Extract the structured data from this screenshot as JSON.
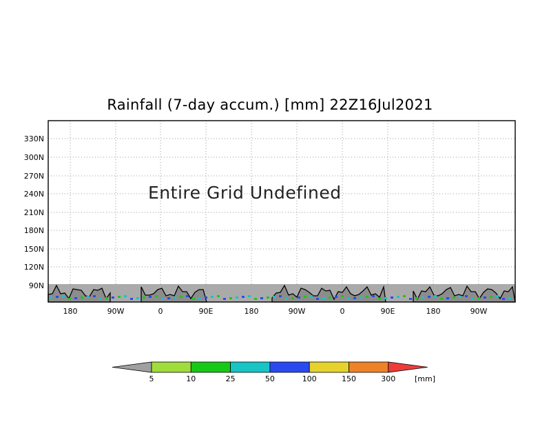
{
  "title": "Rainfall (7-day accum.) [mm] 22Z16Jul2021",
  "message": "Entire Grid Undefined",
  "y_axis_labels": [
    "330N",
    "300N",
    "270N",
    "240N",
    "210N",
    "180N",
    "150N",
    "120N",
    "90N"
  ],
  "x_axis_labels": [
    "180",
    "90W",
    "0",
    "90E",
    "180",
    "90W",
    "0",
    "90E",
    "180",
    "90W"
  ],
  "colorbar": {
    "unit": "[mm]",
    "tick_labels": [
      "5",
      "10",
      "25",
      "50",
      "100",
      "150",
      "300"
    ],
    "colors": [
      "#a0a0a0",
      "#9fdc3c",
      "#18c818",
      "#18c4c4",
      "#2a4af0",
      "#e6d22c",
      "#ee8228",
      "#ee3c3c"
    ]
  },
  "colors": {
    "undefined_band": "#aaaaaa",
    "land": "#8c8c8c",
    "coast": "#000000",
    "grid": "#9a9a9a"
  }
}
